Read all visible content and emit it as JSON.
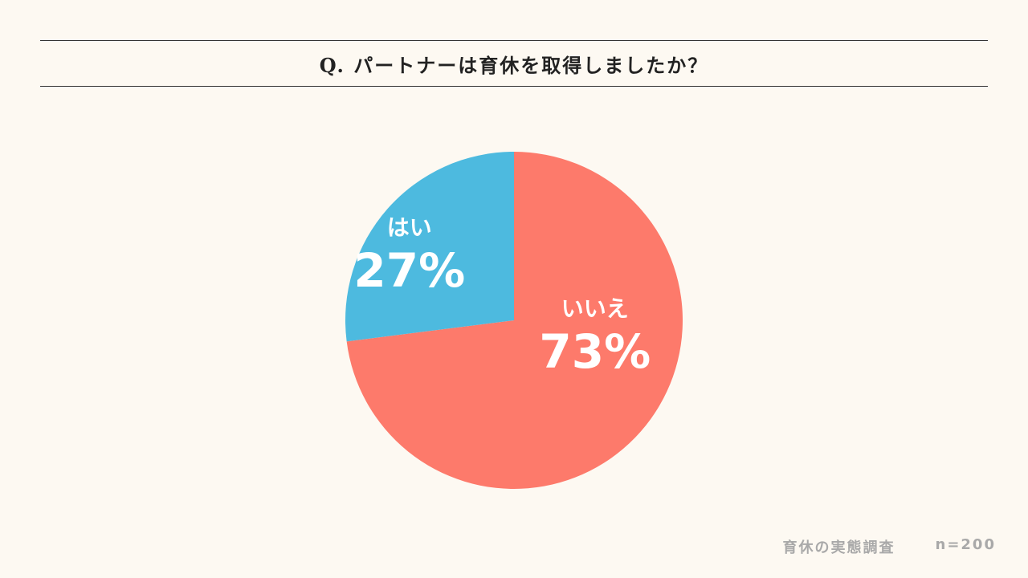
{
  "title": "Q. パートナーは育休を取得しましたか？",
  "colors": {
    "background": "#fdf9f2",
    "yes": "#4dbadf",
    "no": "#fd7a6b"
  },
  "chart_data": {
    "type": "pie",
    "title": "Q. パートナーは育休を取得しましたか？",
    "slices": [
      {
        "label": "いいえ",
        "value": 73,
        "value_label": "73%",
        "color": "#fd7a6b"
      },
      {
        "label": "はい",
        "value": 27,
        "value_label": "27%",
        "color": "#4dbadf"
      }
    ]
  },
  "footer": {
    "source": "育休の実態調査",
    "sample": "n=200"
  }
}
